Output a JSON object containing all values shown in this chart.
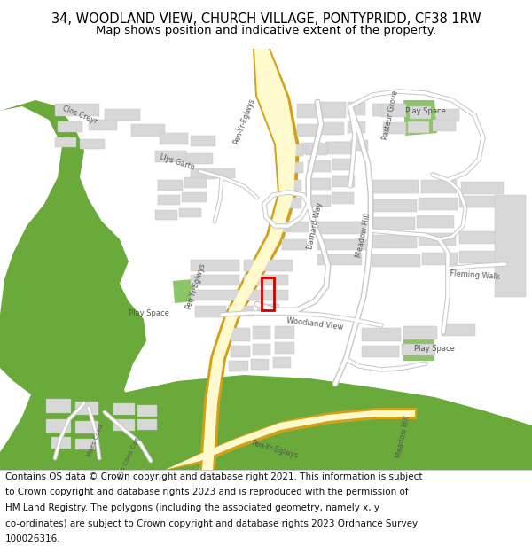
{
  "title_line1": "34, WOODLAND VIEW, CHURCH VILLAGE, PONTYPRIDD, CF38 1RW",
  "title_line2": "Map shows position and indicative extent of the property.",
  "footer_text": "Contains OS data © Crown copyright and database right 2021. This information is subject to Crown copyright and database rights 2023 and is reproduced with the permission of HM Land Registry. The polygons (including the associated geometry, namely x, y co-ordinates) are subject to Crown copyright and database rights 2023 Ordnance Survey 100026316.",
  "title_fontsize": 10.5,
  "subtitle_fontsize": 9.5,
  "footer_fontsize": 7.5,
  "fig_width": 6.0,
  "fig_height": 6.25,
  "map_bg": "#ffffff",
  "road_yellow_fill": "#fffacd",
  "road_yellow_border": "#d4a017",
  "green_dark": "#6aaa3a",
  "green_light": "#8dc46a",
  "building_color": "#d8d8d8",
  "building_outline": "#c0c0c0",
  "road_outline": "#c8c8c8",
  "red_plot": "#cc0000",
  "text_color": "#555555",
  "footer_border": "#cccccc"
}
